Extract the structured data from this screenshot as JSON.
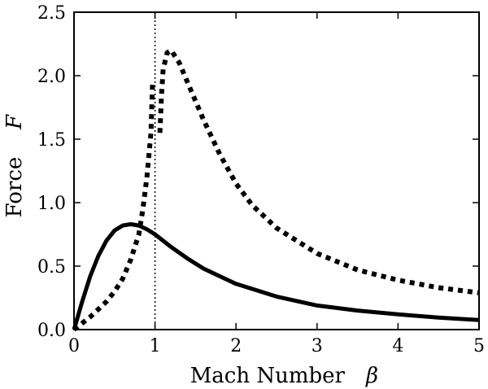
{
  "chart_data": {
    "type": "line",
    "xlabel": "Mach Number",
    "xlabel_symbol": "β",
    "ylabel": "Force",
    "ylabel_symbol": "F",
    "xlim": [
      0,
      5
    ],
    "ylim": [
      0,
      2.5
    ],
    "x_ticks": [
      "0",
      "1",
      "2",
      "3",
      "4",
      "5"
    ],
    "y_ticks": [
      "0.0",
      "0.5",
      "1.0",
      "1.5",
      "2.0",
      "2.5"
    ],
    "grid": false,
    "legend": "none",
    "reference_line": {
      "x": 1,
      "style": "dotted"
    },
    "series": [
      {
        "style": "solid",
        "points": [
          [
            0,
            0
          ],
          [
            0.1,
            0.22
          ],
          [
            0.2,
            0.42
          ],
          [
            0.3,
            0.58
          ],
          [
            0.4,
            0.7
          ],
          [
            0.5,
            0.78
          ],
          [
            0.6,
            0.82
          ],
          [
            0.7,
            0.83
          ],
          [
            0.8,
            0.82
          ],
          [
            0.9,
            0.79
          ],
          [
            1.0,
            0.75
          ],
          [
            1.2,
            0.65
          ],
          [
            1.4,
            0.56
          ],
          [
            1.6,
            0.48
          ],
          [
            1.8,
            0.42
          ],
          [
            2.0,
            0.36
          ],
          [
            2.5,
            0.26
          ],
          [
            3.0,
            0.19
          ],
          [
            3.5,
            0.15
          ],
          [
            4.0,
            0.12
          ],
          [
            4.5,
            0.095
          ],
          [
            5.0,
            0.075
          ]
        ]
      },
      {
        "style": "dotted",
        "segments": [
          [
            [
              0,
              0
            ],
            [
              0.1,
              0.05
            ],
            [
              0.2,
              0.1
            ],
            [
              0.3,
              0.16
            ],
            [
              0.4,
              0.22
            ],
            [
              0.5,
              0.3
            ],
            [
              0.6,
              0.4
            ],
            [
              0.7,
              0.55
            ],
            [
              0.8,
              0.75
            ],
            [
              0.85,
              0.95
            ],
            [
              0.9,
              1.2
            ],
            [
              0.95,
              1.55
            ],
            [
              0.97,
              1.95
            ]
          ],
          [
            [
              1.06,
              1.55
            ],
            [
              1.08,
              1.85
            ],
            [
              1.1,
              2.05
            ],
            [
              1.15,
              2.18
            ],
            [
              1.2,
              2.2
            ],
            [
              1.3,
              2.1
            ],
            [
              1.4,
              1.95
            ],
            [
              1.6,
              1.65
            ],
            [
              1.8,
              1.38
            ],
            [
              2.0,
              1.15
            ],
            [
              2.2,
              0.98
            ],
            [
              2.5,
              0.8
            ],
            [
              3.0,
              0.6
            ],
            [
              3.5,
              0.47
            ],
            [
              4.0,
              0.39
            ],
            [
              4.5,
              0.33
            ],
            [
              5.0,
              0.29
            ]
          ]
        ]
      }
    ]
  }
}
